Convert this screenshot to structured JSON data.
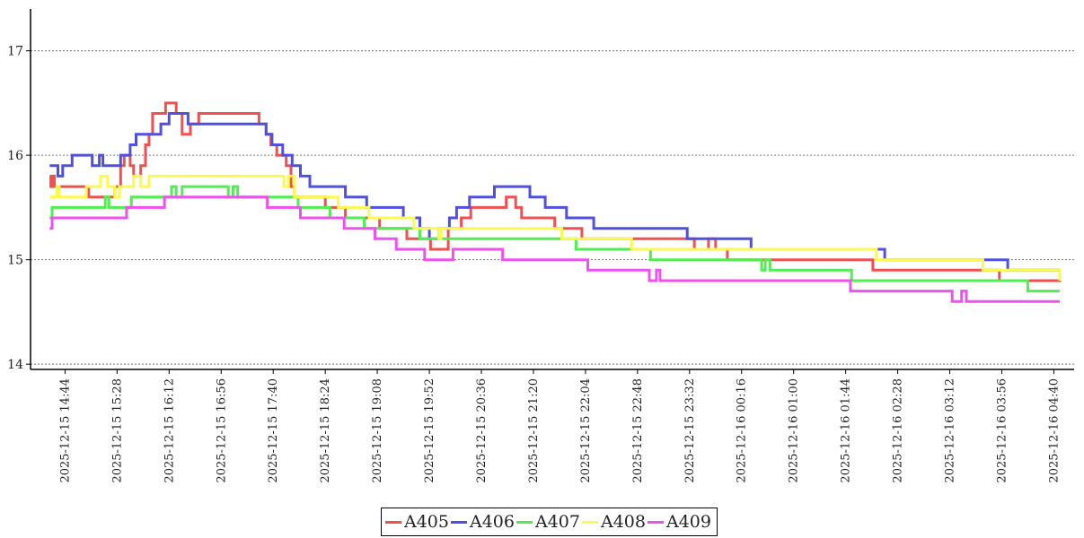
{
  "chart_data": {
    "type": "line",
    "title": "",
    "xlabel": "",
    "ylabel": "",
    "ylim": [
      13.95,
      17.4
    ],
    "yticks": [
      14,
      15,
      16,
      17
    ],
    "grid": "y-dotted",
    "legend_position": "bottom-center",
    "x_start": "2025-12-15 14:30",
    "x_end": "2025-12-16 04:45",
    "x_tick_labels": [
      "2025-12-15 14:44",
      "2025-12-15 15:28",
      "2025-12-15 16:12",
      "2025-12-15 16:56",
      "2025-12-15 17:40",
      "2025-12-15 18:24",
      "2025-12-15 19:08",
      "2025-12-15 19:52",
      "2025-12-15 20:36",
      "2025-12-15 21:20",
      "2025-12-15 22:04",
      "2025-12-15 22:48",
      "2025-12-15 23:32",
      "2025-12-16 00:16",
      "2025-12-16 01:00",
      "2025-12-16 01:44",
      "2025-12-16 02:28",
      "2025-12-16 03:12",
      "2025-12-16 03:56",
      "2025-12-16 04:40"
    ],
    "series": [
      {
        "name": "A405",
        "color": "#f05050",
        "points": [
          [
            "2025-12-15 14:31",
            15.8
          ],
          [
            "2025-12-15 14:32",
            15.7
          ],
          [
            "2025-12-15 14:33",
            15.8
          ],
          [
            "2025-12-15 14:35",
            15.7
          ],
          [
            "2025-12-15 15:04",
            15.6
          ],
          [
            "2025-12-15 15:26",
            15.7
          ],
          [
            "2025-12-15 15:31",
            15.9
          ],
          [
            "2025-12-15 15:34",
            16.0
          ],
          [
            "2025-12-15 15:39",
            15.9
          ],
          [
            "2025-12-15 15:42",
            15.8
          ],
          [
            "2025-12-15 15:48",
            15.9
          ],
          [
            "2025-12-15 15:52",
            16.1
          ],
          [
            "2025-12-15 15:55",
            16.2
          ],
          [
            "2025-12-15 15:58",
            16.4
          ],
          [
            "2025-12-15 16:09",
            16.5
          ],
          [
            "2025-12-15 16:18",
            16.4
          ],
          [
            "2025-12-15 16:23",
            16.2
          ],
          [
            "2025-12-15 16:30",
            16.3
          ],
          [
            "2025-12-15 16:37",
            16.4
          ],
          [
            "2025-12-15 17:28",
            16.3
          ],
          [
            "2025-12-15 17:34",
            16.2
          ],
          [
            "2025-12-15 17:38",
            16.1
          ],
          [
            "2025-12-15 17:43",
            16.0
          ],
          [
            "2025-12-15 17:51",
            15.9
          ],
          [
            "2025-12-15 17:55",
            15.7
          ],
          [
            "2025-12-15 17:58",
            15.6
          ],
          [
            "2025-12-15 18:24",
            15.5
          ],
          [
            "2025-12-15 18:41",
            15.4
          ],
          [
            "2025-12-15 19:10",
            15.3
          ],
          [
            "2025-12-15 19:33",
            15.2
          ],
          [
            "2025-12-15 19:53",
            15.1
          ],
          [
            "2025-12-15 20:08",
            15.3
          ],
          [
            "2025-12-15 20:19",
            15.4
          ],
          [
            "2025-12-15 20:27",
            15.5
          ],
          [
            "2025-12-15 20:57",
            15.6
          ],
          [
            "2025-12-15 21:05",
            15.5
          ],
          [
            "2025-12-15 21:10",
            15.4
          ],
          [
            "2025-12-15 21:38",
            15.3
          ],
          [
            "2025-12-15 22:01",
            15.2
          ],
          [
            "2025-12-15 23:36",
            15.1
          ],
          [
            "2025-12-15 23:48",
            15.2
          ],
          [
            "2025-12-15 23:54",
            15.1
          ],
          [
            "2025-12-16 00:04",
            15.0
          ],
          [
            "2025-12-16 02:07",
            14.9
          ],
          [
            "2025-12-16 03:54",
            14.8
          ],
          [
            "2025-12-16 04:45",
            14.9
          ]
        ]
      },
      {
        "name": "A406",
        "color": "#5050e0",
        "points": [
          [
            "2025-12-15 14:31",
            15.9
          ],
          [
            "2025-12-15 14:38",
            15.8
          ],
          [
            "2025-12-15 14:42",
            15.9
          ],
          [
            "2025-12-15 14:50",
            16.0
          ],
          [
            "2025-12-15 15:07",
            15.9
          ],
          [
            "2025-12-15 15:13",
            16.0
          ],
          [
            "2025-12-15 15:16",
            15.9
          ],
          [
            "2025-12-15 15:31",
            16.0
          ],
          [
            "2025-12-15 15:39",
            16.1
          ],
          [
            "2025-12-15 15:44",
            16.2
          ],
          [
            "2025-12-15 16:05",
            16.3
          ],
          [
            "2025-12-15 16:12",
            16.4
          ],
          [
            "2025-12-15 16:28",
            16.3
          ],
          [
            "2025-12-15 17:34",
            16.2
          ],
          [
            "2025-12-15 17:39",
            16.1
          ],
          [
            "2025-12-15 17:48",
            16.0
          ],
          [
            "2025-12-15 17:56",
            15.9
          ],
          [
            "2025-12-15 18:03",
            15.8
          ],
          [
            "2025-12-15 18:11",
            15.7
          ],
          [
            "2025-12-15 18:41",
            15.6
          ],
          [
            "2025-12-15 18:59",
            15.5
          ],
          [
            "2025-12-15 19:30",
            15.4
          ],
          [
            "2025-12-15 19:44",
            15.3
          ],
          [
            "2025-12-15 19:52",
            15.2
          ],
          [
            "2025-12-15 20:00",
            15.3
          ],
          [
            "2025-12-15 20:09",
            15.4
          ],
          [
            "2025-12-15 20:15",
            15.5
          ],
          [
            "2025-12-15 20:26",
            15.6
          ],
          [
            "2025-12-15 20:47",
            15.7
          ],
          [
            "2025-12-15 21:17",
            15.6
          ],
          [
            "2025-12-15 21:30",
            15.5
          ],
          [
            "2025-12-15 21:48",
            15.4
          ],
          [
            "2025-12-15 22:11",
            15.3
          ],
          [
            "2025-12-15 23:30",
            15.2
          ],
          [
            "2025-12-16 00:24",
            15.1
          ],
          [
            "2025-12-16 02:17",
            15.0
          ],
          [
            "2025-12-16 04:01",
            14.9
          ],
          [
            "2025-12-16 04:45",
            14.9
          ]
        ]
      },
      {
        "name": "A407",
        "color": "#50ee50",
        "points": [
          [
            "2025-12-15 14:31",
            15.4
          ],
          [
            "2025-12-15 14:33",
            15.5
          ],
          [
            "2025-12-15 15:18",
            15.6
          ],
          [
            "2025-12-15 15:21",
            15.5
          ],
          [
            "2025-12-15 15:40",
            15.6
          ],
          [
            "2025-12-15 16:14",
            15.7
          ],
          [
            "2025-12-15 16:18",
            15.6
          ],
          [
            "2025-12-15 16:23",
            15.7
          ],
          [
            "2025-12-15 17:02",
            15.6
          ],
          [
            "2025-12-15 17:06",
            15.7
          ],
          [
            "2025-12-15 17:10",
            15.6
          ],
          [
            "2025-12-15 18:01",
            15.5
          ],
          [
            "2025-12-15 18:28",
            15.4
          ],
          [
            "2025-12-15 18:57",
            15.3
          ],
          [
            "2025-12-15 19:44",
            15.2
          ],
          [
            "2025-12-15 21:56",
            15.1
          ],
          [
            "2025-12-15 22:59",
            15.0
          ],
          [
            "2025-12-16 00:33",
            14.9
          ],
          [
            "2025-12-16 00:36",
            15.0
          ],
          [
            "2025-12-16 00:40",
            14.9
          ],
          [
            "2025-12-16 01:49",
            14.8
          ],
          [
            "2025-12-16 04:18",
            14.7
          ],
          [
            "2025-12-16 04:45",
            14.7
          ]
        ]
      },
      {
        "name": "A408",
        "color": "#fafa50",
        "points": [
          [
            "2025-12-15 14:31",
            15.6
          ],
          [
            "2025-12-15 14:37",
            15.7
          ],
          [
            "2025-12-15 14:39",
            15.6
          ],
          [
            "2025-12-15 15:02",
            15.7
          ],
          [
            "2025-12-15 15:14",
            15.8
          ],
          [
            "2025-12-15 15:20",
            15.7
          ],
          [
            "2025-12-15 15:26",
            15.6
          ],
          [
            "2025-12-15 15:30",
            15.7
          ],
          [
            "2025-12-15 15:42",
            15.8
          ],
          [
            "2025-12-15 15:48",
            15.7
          ],
          [
            "2025-12-15 15:55",
            15.8
          ],
          [
            "2025-12-15 17:49",
            15.7
          ],
          [
            "2025-12-15 17:53",
            15.8
          ],
          [
            "2025-12-15 17:58",
            15.6
          ],
          [
            "2025-12-15 18:35",
            15.5
          ],
          [
            "2025-12-15 19:01",
            15.4
          ],
          [
            "2025-12-15 19:39",
            15.3
          ],
          [
            "2025-12-15 20:00",
            15.2
          ],
          [
            "2025-12-15 20:02",
            15.3
          ],
          [
            "2025-12-15 21:44",
            15.2
          ],
          [
            "2025-12-15 22:43",
            15.1
          ],
          [
            "2025-12-16 02:10",
            15.0
          ],
          [
            "2025-12-16 03:40",
            14.9
          ],
          [
            "2025-12-16 04:45",
            14.8
          ]
        ]
      },
      {
        "name": "A409",
        "color": "#f050f0",
        "points": [
          [
            "2025-12-15 14:31",
            15.3
          ],
          [
            "2025-12-15 14:33",
            15.4
          ],
          [
            "2025-12-15 15:36",
            15.5
          ],
          [
            "2025-12-15 16:08",
            15.6
          ],
          [
            "2025-12-15 17:35",
            15.5
          ],
          [
            "2025-12-15 18:03",
            15.4
          ],
          [
            "2025-12-15 18:40",
            15.3
          ],
          [
            "2025-12-15 19:06",
            15.2
          ],
          [
            "2025-12-15 19:24",
            15.1
          ],
          [
            "2025-12-15 19:48",
            15.0
          ],
          [
            "2025-12-15 20:12",
            15.1
          ],
          [
            "2025-12-15 20:54",
            15.0
          ],
          [
            "2025-12-15 22:06",
            14.9
          ],
          [
            "2025-12-15 22:58",
            14.8
          ],
          [
            "2025-12-15 23:04",
            14.9
          ],
          [
            "2025-12-15 23:07",
            14.8
          ],
          [
            "2025-12-16 01:48",
            14.7
          ],
          [
            "2025-12-16 03:14",
            14.6
          ],
          [
            "2025-12-16 03:22",
            14.7
          ],
          [
            "2025-12-16 03:26",
            14.6
          ],
          [
            "2025-12-16 04:45",
            14.6
          ]
        ]
      }
    ]
  }
}
